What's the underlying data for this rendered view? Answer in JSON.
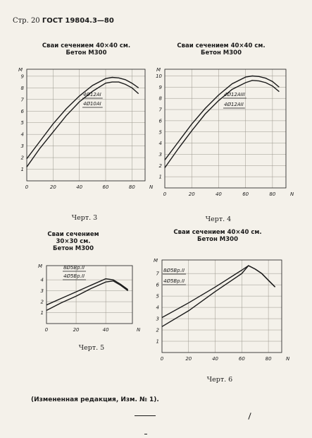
{
  "page": {
    "header_prefix": "Стр. 20",
    "header_standard": "ГОСТ 19804.3—80",
    "footer_note": "(Измененная редакция, Изм. № 1)."
  },
  "chart_data": [
    {
      "type": "line",
      "title": "Сваи сечением 40×40 см.\nБетон М300",
      "caption": "Черт. 3",
      "xlabel": "N",
      "ylabel": "M",
      "xlim": [
        0,
        90
      ],
      "ylim": [
        0,
        9.6
      ],
      "x_ticks": [
        0,
        20,
        40,
        60,
        80
      ],
      "y_ticks": [
        1,
        2,
        3,
        4,
        5,
        6,
        7,
        8,
        9
      ],
      "grid": true,
      "series": [
        {
          "name": "4Ø12АI",
          "x": [
            0,
            10,
            20,
            30,
            40,
            50,
            60,
            65,
            70,
            75,
            80,
            85
          ],
          "y": [
            1.9,
            3.4,
            4.9,
            6.2,
            7.3,
            8.2,
            8.8,
            8.9,
            8.85,
            8.7,
            8.4,
            8.0
          ]
        },
        {
          "name": "4Ø10АI",
          "x": [
            0,
            10,
            20,
            30,
            40,
            50,
            60,
            65,
            70,
            75,
            80,
            85
          ],
          "y": [
            1.2,
            2.8,
            4.2,
            5.6,
            6.8,
            7.7,
            8.4,
            8.5,
            8.5,
            8.3,
            8.0,
            7.5
          ]
        }
      ]
    },
    {
      "type": "line",
      "title": "Сваи сечением 40×40 см.\nБетон М300",
      "caption": "Черт. 4",
      "xlabel": "N",
      "ylabel": "M",
      "xlim": [
        0,
        90
      ],
      "ylim": [
        0,
        10.6
      ],
      "x_ticks": [
        0,
        20,
        40,
        60,
        80
      ],
      "y_ticks": [
        1,
        2,
        3,
        4,
        5,
        6,
        7,
        8,
        9,
        10
      ],
      "grid": true,
      "series": [
        {
          "name": "4Ø12АIII",
          "x": [
            0,
            10,
            20,
            30,
            40,
            50,
            60,
            65,
            70,
            75,
            80,
            85
          ],
          "y": [
            2.5,
            4.1,
            5.7,
            7.1,
            8.3,
            9.3,
            9.9,
            10.0,
            9.95,
            9.8,
            9.5,
            9.0
          ]
        },
        {
          "name": "4Ø12АII",
          "x": [
            0,
            10,
            20,
            30,
            40,
            50,
            60,
            65,
            70,
            75,
            80,
            85
          ],
          "y": [
            1.8,
            3.5,
            5.1,
            6.6,
            7.8,
            8.8,
            9.4,
            9.6,
            9.55,
            9.4,
            9.1,
            8.6
          ]
        }
      ]
    },
    {
      "type": "line",
      "title": "Сваи сечением\n30×30 см.\nБетон М300",
      "caption": "Черт. 5",
      "xlabel": "N",
      "ylabel": "M",
      "xlim": [
        0,
        58
      ],
      "ylim": [
        0,
        5.3
      ],
      "x_ticks": [
        0,
        20,
        40
      ],
      "x_tick_labels": [
        "0",
        "20",
        "40"
      ],
      "y_ticks": [
        1,
        2,
        3,
        4
      ],
      "grid": true,
      "series": [
        {
          "name": "8Ø5Вр.II",
          "x": [
            0,
            10,
            20,
            30,
            40,
            45,
            50,
            55
          ],
          "y": [
            1.7,
            2.3,
            2.9,
            3.5,
            4.1,
            4.0,
            3.6,
            3.1
          ]
        },
        {
          "name": "4Ø5Вр.II",
          "x": [
            0,
            10,
            20,
            30,
            40,
            45,
            50,
            55
          ],
          "y": [
            1.2,
            1.9,
            2.5,
            3.2,
            3.8,
            3.9,
            3.5,
            3.0
          ]
        }
      ]
    },
    {
      "type": "line",
      "title": "Сваи сечением 40×40 см.\nБетон М300",
      "caption": "Черт. 6",
      "xlabel": "N",
      "ylabel": "M",
      "xlim": [
        0,
        90
      ],
      "ylim": [
        0,
        8.2
      ],
      "x_ticks": [
        0,
        20,
        40,
        60,
        80
      ],
      "y_ticks": [
        1,
        2,
        3,
        4,
        5,
        6,
        7
      ],
      "grid": true,
      "series": [
        {
          "name": "8Ø5Вр.II",
          "x": [
            0,
            20,
            40,
            60,
            65,
            70,
            75,
            80,
            85
          ],
          "y": [
            3.1,
            4.4,
            5.8,
            7.3,
            7.7,
            7.4,
            7.0,
            6.4,
            5.8
          ]
        },
        {
          "name": "4Ø5Вр.II",
          "x": [
            0,
            20,
            40,
            60,
            65,
            70,
            75,
            80,
            85
          ],
          "y": [
            2.3,
            3.7,
            5.4,
            7.0,
            7.7,
            7.4,
            7.0,
            6.4,
            5.8
          ]
        }
      ]
    }
  ]
}
